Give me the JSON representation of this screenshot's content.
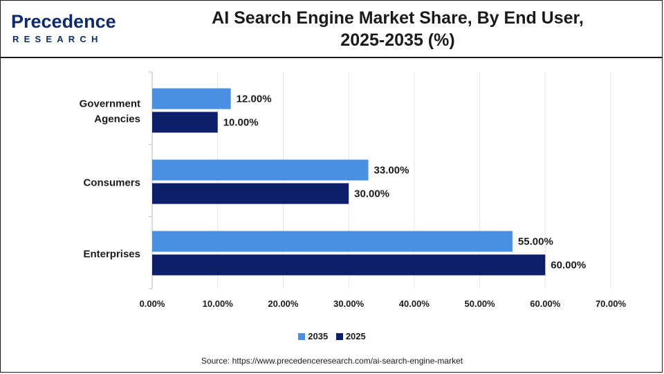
{
  "logo": {
    "word": "Precedence",
    "sub": "RESEARCH"
  },
  "title_line1": "AI Search Engine Market Share, By End User,",
  "title_line2": "2025-2035 (%)",
  "source": "Source: https://www.precedenceresearch.com/ai-search-engine-market",
  "chart_data": {
    "type": "bar",
    "orientation": "horizontal",
    "title": "AI Search Engine Market Share, By End User, 2025-2035 (%)",
    "categories": [
      "Government Agencies",
      "Consumers",
      "Enterprises"
    ],
    "series": [
      {
        "name": "2035",
        "values": [
          12,
          33,
          55
        ],
        "color": "#4a90e2"
      },
      {
        "name": "2025",
        "values": [
          10,
          30,
          60
        ],
        "color": "#0d1f6b"
      }
    ],
    "value_labels": {
      "2035": [
        "12.00%",
        "33.00%",
        "55.00%"
      ],
      "2025": [
        "10.00%",
        "30.00%",
        "60.00%"
      ]
    },
    "xlim": [
      0,
      70
    ],
    "xticks": [
      0,
      10,
      20,
      30,
      40,
      50,
      60,
      70
    ],
    "xtick_labels": [
      "0.00%",
      "10.00%",
      "20.00%",
      "30.00%",
      "40.00%",
      "50.00%",
      "60.00%",
      "70.00%"
    ],
    "grid": "vertical",
    "legend": "bottom-center"
  }
}
